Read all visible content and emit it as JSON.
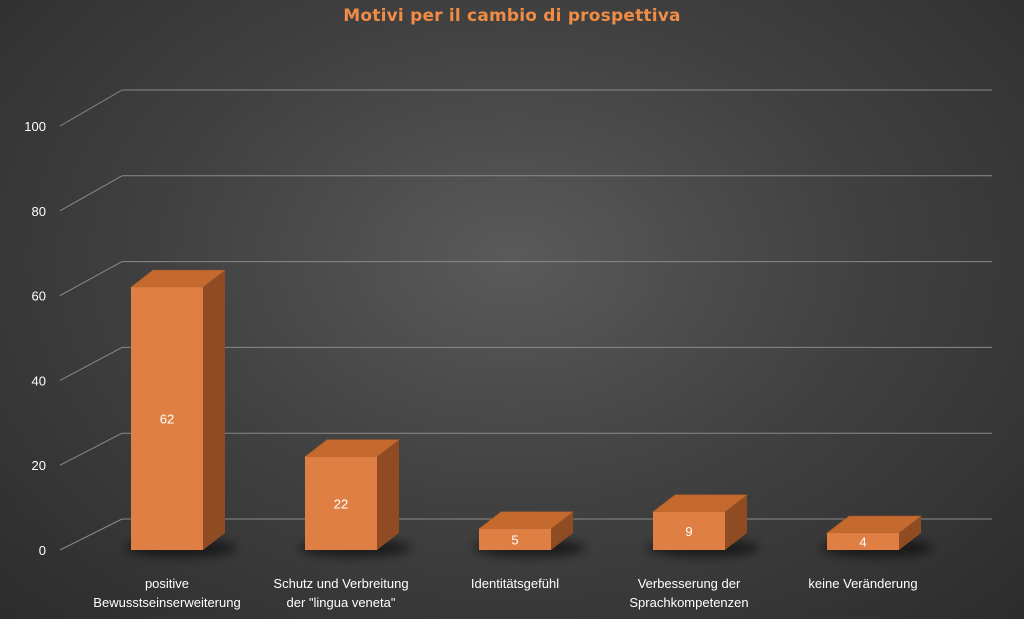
{
  "chart_data": {
    "type": "bar",
    "title": "Motivi per il cambio di prospettiva",
    "categories": [
      [
        "positive",
        "Bewusstseinserweiterung"
      ],
      [
        "Schutz und Verbreitung",
        "der \"lingua veneta\""
      ],
      [
        "Identitätsgefühl"
      ],
      [
        "Verbesserung der",
        "Sprachkompetenzen"
      ],
      [
        "keine Veränderung"
      ]
    ],
    "values": [
      62,
      22,
      5,
      9,
      4
    ],
    "yticks": [
      0,
      20,
      40,
      60,
      80,
      100
    ],
    "ylim": [
      0,
      100
    ],
    "style": "3d-column",
    "grid": true,
    "data_labels": true,
    "legend": "none",
    "colors": {
      "bar_front": "#e07f44",
      "bar_top": "#c46a2f",
      "bar_side": "#8f4c22",
      "title": "#f08c45",
      "gridline": "#8a8a8a",
      "text": "#ffffff"
    }
  }
}
